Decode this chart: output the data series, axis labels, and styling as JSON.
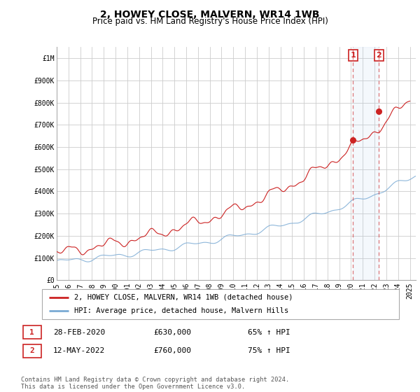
{
  "title": "2, HOWEY CLOSE, MALVERN, WR14 1WB",
  "subtitle": "Price paid vs. HM Land Registry's House Price Index (HPI)",
  "ylim": [
    0,
    1050000
  ],
  "yticks": [
    0,
    100000,
    200000,
    300000,
    400000,
    500000,
    600000,
    700000,
    800000,
    900000,
    1000000
  ],
  "ytick_labels": [
    "£0",
    "£100K",
    "£200K",
    "£300K",
    "£400K",
    "£500K",
    "£600K",
    "£700K",
    "£800K",
    "£900K",
    "£1M"
  ],
  "xlim_start": 1995.0,
  "xlim_end": 2025.5,
  "hpi_color": "#7aaad4",
  "price_color": "#cc2222",
  "marker1_date": 2020.17,
  "marker1_price": 630000,
  "marker1_label": "1",
  "marker2_date": 2022.37,
  "marker2_price": 760000,
  "marker2_label": "2",
  "legend_label_price": "2, HOWEY CLOSE, MALVERN, WR14 1WB (detached house)",
  "legend_label_hpi": "HPI: Average price, detached house, Malvern Hills",
  "table_row1": [
    "1",
    "28-FEB-2020",
    "£630,000",
    "65% ↑ HPI"
  ],
  "table_row2": [
    "2",
    "12-MAY-2022",
    "£760,000",
    "75% ↑ HPI"
  ],
  "footnote": "Contains HM Land Registry data © Crown copyright and database right 2024.\nThis data is licensed under the Open Government Licence v3.0.",
  "background_color": "#ffffff",
  "grid_color": "#cccccc",
  "title_fontsize": 10,
  "subtitle_fontsize": 8.5,
  "axis_fontsize": 7
}
